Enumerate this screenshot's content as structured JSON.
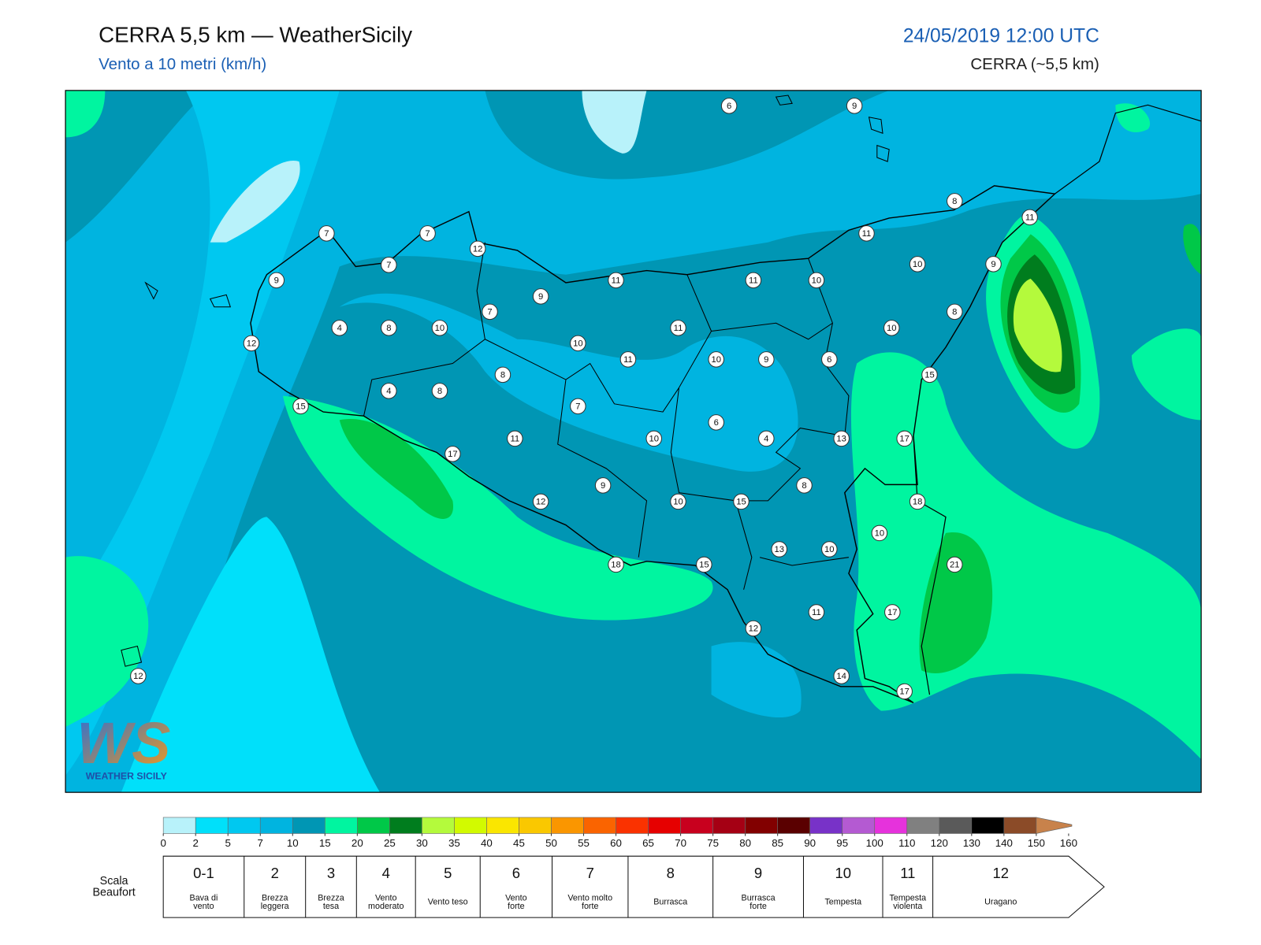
{
  "header": {
    "title": "CERRA 5,5 km — WeatherSicily",
    "subtitle": "Vento a 10 metri (km/h)",
    "datetime": "24/05/2019 12:00 UTC",
    "model": "CERRA (~5,5 km)"
  },
  "map": {
    "wind_labels": [
      6,
      9,
      8,
      11,
      7,
      7,
      12,
      11,
      7,
      10,
      9,
      9,
      11,
      11,
      10,
      9,
      7,
      8,
      4,
      8,
      10,
      11,
      10,
      12,
      10,
      11,
      10,
      9,
      6,
      8,
      15,
      4,
      8,
      15,
      7,
      6,
      11,
      10,
      4,
      13,
      17,
      17,
      9,
      8,
      12,
      10,
      15,
      18,
      10,
      13,
      10,
      18,
      15,
      21,
      11,
      17,
      12,
      12,
      14,
      17
    ]
  },
  "logo": {
    "mark": "WS",
    "caption": "WEATHER SICILY"
  },
  "colorbar": {
    "ticks": [
      0,
      2,
      5,
      7,
      10,
      15,
      20,
      25,
      30,
      35,
      40,
      45,
      50,
      55,
      60,
      65,
      70,
      75,
      80,
      85,
      90,
      95,
      100,
      110,
      120,
      130,
      140,
      150,
      160
    ],
    "colors": [
      "#b8f2fa",
      "#00e0fa",
      "#00c8f0",
      "#00b4e0",
      "#0096b4",
      "#00f5a0",
      "#00c848",
      "#007d1e",
      "#b4fa3c",
      "#d2fa00",
      "#fae600",
      "#fac800",
      "#fa9600",
      "#fa6400",
      "#fa3200",
      "#e60000",
      "#c8001e",
      "#a50014",
      "#820000",
      "#5a0000",
      "#7832c8",
      "#b45ad2",
      "#e632dc",
      "#808080",
      "#5a5a5a",
      "#000000",
      "#8b4b28",
      "#c8824b"
    ]
  },
  "beaufort": {
    "label": [
      "Scala",
      "Beaufort"
    ],
    "forces": [
      {
        "force": "0-1",
        "description": [
          "Bava di",
          "vento"
        ]
      },
      {
        "force": "2",
        "description": [
          "Brezza",
          "leggera"
        ]
      },
      {
        "force": "3",
        "description": [
          "Brezza",
          "tesa"
        ]
      },
      {
        "force": "4",
        "description": [
          "Vento",
          "moderato"
        ]
      },
      {
        "force": "5",
        "description": [
          "Vento teso"
        ]
      },
      {
        "force": "6",
        "description": [
          "Vento",
          "forte"
        ]
      },
      {
        "force": "7",
        "description": [
          "Vento molto",
          "forte"
        ]
      },
      {
        "force": "8",
        "description": [
          "Burrasca"
        ]
      },
      {
        "force": "9",
        "description": [
          "Burrasca",
          "forte"
        ]
      },
      {
        "force": "10",
        "description": [
          "Tempesta"
        ]
      },
      {
        "force": "11",
        "description": [
          "Tempesta",
          "violenta"
        ]
      },
      {
        "force": "12",
        "description": [
          "Uragano"
        ]
      }
    ]
  }
}
